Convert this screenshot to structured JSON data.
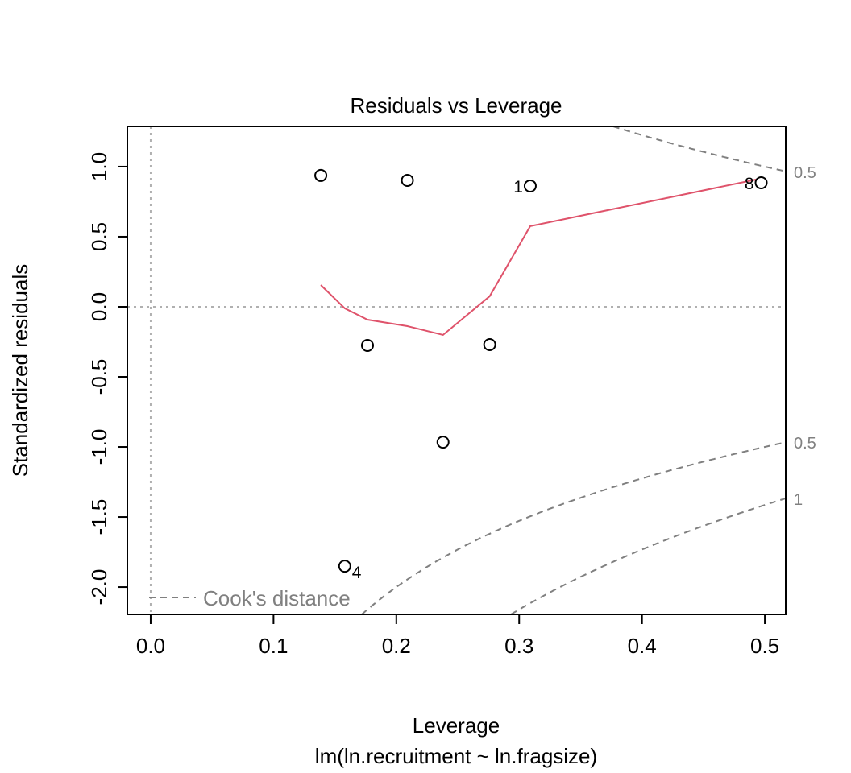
{
  "chart_data": {
    "type": "scatter",
    "title": "Residuals vs Leverage",
    "xlabel": "Leverage",
    "subtitle": "lm(ln.recruitment ~ ln.fragsize)",
    "ylabel": "Standardized residuals",
    "xlim": [
      -0.019,
      0.517
    ],
    "ylim": [
      -2.195,
      1.287
    ],
    "xticks": [
      "0.0",
      "0.1",
      "0.2",
      "0.3",
      "0.4",
      "0.5"
    ],
    "xtick_values": [
      0,
      0.1,
      0.2,
      0.3,
      0.4,
      0.5
    ],
    "yticks": [
      "-2.0",
      "-1.5",
      "-1.0",
      "-0.5",
      "0.0",
      "0.5",
      "1.0"
    ],
    "ytick_values": [
      -2,
      -1.5,
      -1,
      -0.5,
      0,
      0.5,
      1
    ],
    "points": [
      {
        "x": 0.1385,
        "y": 0.937,
        "label": ""
      },
      {
        "x": 0.209,
        "y": 0.902,
        "label": ""
      },
      {
        "x": 0.309,
        "y": 0.862,
        "label": "1"
      },
      {
        "x": 0.497,
        "y": 0.885,
        "label": "8"
      },
      {
        "x": 0.1765,
        "y": -0.276,
        "label": ""
      },
      {
        "x": 0.276,
        "y": -0.27,
        "label": ""
      },
      {
        "x": 0.238,
        "y": -0.966,
        "label": ""
      },
      {
        "x": 0.158,
        "y": -1.851,
        "label": "4"
      }
    ],
    "smooth_line": {
      "color": "#DF536B",
      "x": [
        0.1385,
        0.158,
        0.1765,
        0.209,
        0.238,
        0.276,
        0.309,
        0.494
      ],
      "y": [
        0.155,
        -0.011,
        -0.092,
        -0.138,
        -0.201,
        0.075,
        0.575,
        0.91
      ]
    },
    "cooks_levels": [
      0.5,
      1
    ],
    "cooks_labels": [
      "0.5",
      "0.5",
      "1"
    ],
    "n_params": 2,
    "legend": {
      "label": "Cook's distance",
      "placement": "bottom-left"
    },
    "colors": {
      "points": "#000000",
      "cooks": "#808080",
      "reference": "#b0b0b0"
    }
  }
}
